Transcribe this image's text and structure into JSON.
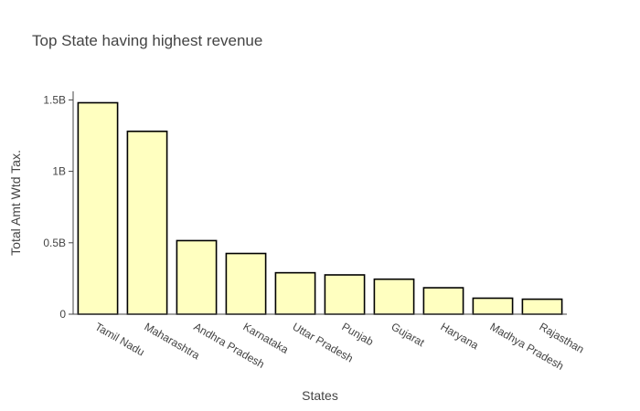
{
  "chart_data": {
    "type": "bar",
    "title": "Top State having highest  revenue",
    "xlabel": "States",
    "ylabel": "Total Amt Wtd Tax.",
    "categories": [
      "Tamil Nadu",
      "Maharashtra",
      "Andhra Pradesh",
      "Karnataka",
      "Uttar Pradesh",
      "Punjab",
      "Gujarat",
      "Haryana",
      "Madhya Pradesh",
      "Rajasthan"
    ],
    "values": [
      1480000000,
      1280000000,
      515000000,
      425000000,
      290000000,
      275000000,
      245000000,
      185000000,
      112000000,
      105000000
    ],
    "ylim": [
      0,
      1560000000
    ],
    "yticks": [
      0,
      500000000,
      1000000000,
      1500000000
    ],
    "ytick_labels": [
      "0",
      "0.5B",
      "1B",
      "1.5B"
    ],
    "grid": false,
    "bar_color": "#ffffc0",
    "bar_outline": "#000000"
  }
}
